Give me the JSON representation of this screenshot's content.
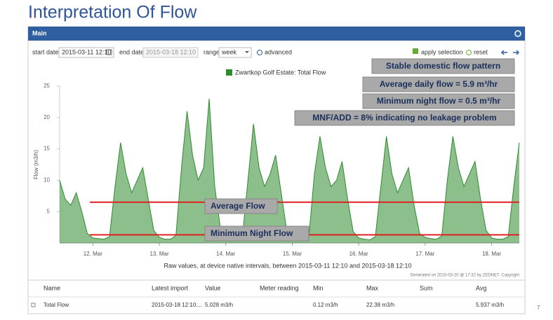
{
  "slide_title": "Interpretation Of Flow",
  "panel_title": "Main",
  "toolbar": {
    "start_label": "start date",
    "start_value": "2015-03-11 12:10",
    "end_label": "end date",
    "end_value": "2015-03-18 12:10",
    "range_label": "range",
    "range_value": "week",
    "advanced": "advanced",
    "apply": "apply selection",
    "reset": "reset"
  },
  "chart_data": {
    "type": "area",
    "ylabel": "Flow (m3/h)",
    "caption": "Raw values, at device native intervals, between 2015-03-11 12:10 and 2015-03-18 12:10",
    "generated": "Generated on 2015-03-20 @ 17:32 by ZEDNET. Copyright",
    "ylim": [
      0,
      25
    ],
    "yticks": [
      5,
      10,
      15,
      20,
      25
    ],
    "categories": [
      null,
      null,
      null,
      null,
      null,
      null,
      "12. Mar",
      null,
      null,
      null,
      null,
      null,
      null,
      null,
      null,
      null,
      null,
      null,
      "13. Mar",
      null,
      null,
      null,
      null,
      null,
      null,
      null,
      null,
      null,
      null,
      null,
      "14. Mar",
      null,
      null,
      null,
      null,
      null,
      null,
      null,
      null,
      null,
      null,
      null,
      "15. Mar",
      null,
      null,
      null,
      null,
      null,
      null,
      null,
      null,
      null,
      null,
      null,
      "16. Mar",
      null,
      null,
      null,
      null,
      null,
      null,
      null,
      null,
      null,
      null,
      null,
      "17. Mar",
      null,
      null,
      null,
      null,
      null,
      null,
      null,
      null,
      null,
      null,
      null,
      "18. Mar",
      null,
      null,
      null,
      null,
      null
    ],
    "series": [
      {
        "name": "Zwartkop Golf Estate: Total Flow",
        "color": "#2e8b2e",
        "values": [
          10,
          7,
          6,
          8,
          5,
          1.5,
          0.8,
          0.7,
          0.6,
          1,
          9,
          16,
          11,
          8,
          10,
          12,
          7,
          2,
          0.9,
          0.6,
          0.6,
          1.2,
          12,
          21,
          14,
          10,
          12,
          23,
          9,
          2.5,
          0.8,
          0.7,
          0.5,
          1,
          10,
          19,
          12,
          9,
          11,
          14,
          8,
          2,
          0.9,
          0.6,
          0.6,
          1,
          11,
          17,
          12,
          9,
          10,
          13,
          7,
          1.8,
          0.8,
          0.6,
          0.5,
          1,
          9,
          17,
          11,
          8,
          10,
          12,
          6,
          1.5,
          0.9,
          0.7,
          0.6,
          1.1,
          10,
          17,
          12,
          9,
          11,
          13,
          7,
          2,
          0.8,
          0.6,
          0.6,
          1,
          9,
          16
        ]
      }
    ],
    "reference_lines": [
      {
        "name": "Average Flow",
        "value": 6.5,
        "color": "#e02020"
      },
      {
        "name": "Minimum Night Flow",
        "value": 1.3,
        "color": "#e02020"
      }
    ],
    "annotations": [
      "Stable domestic flow pattern",
      "Average daily flow = 5.9 m³/hr",
      "Minimum night flow = 0.5 m³/hr",
      "MNF/ADD = 8% indicating no leakage problem"
    ]
  },
  "table": {
    "columns": [
      "Name",
      "Latest import",
      "Value",
      "Meter reading",
      "Min",
      "Max",
      "Sum",
      "Avg"
    ],
    "row": {
      "name": "Total Flow",
      "latest_import": "2015-03-18 12:10:...",
      "value": "5.028 m3/h",
      "min": "0.12 m3/h",
      "max": "22.38 m3/h",
      "avg": "5.937 m3/h"
    }
  },
  "page_number": "7"
}
